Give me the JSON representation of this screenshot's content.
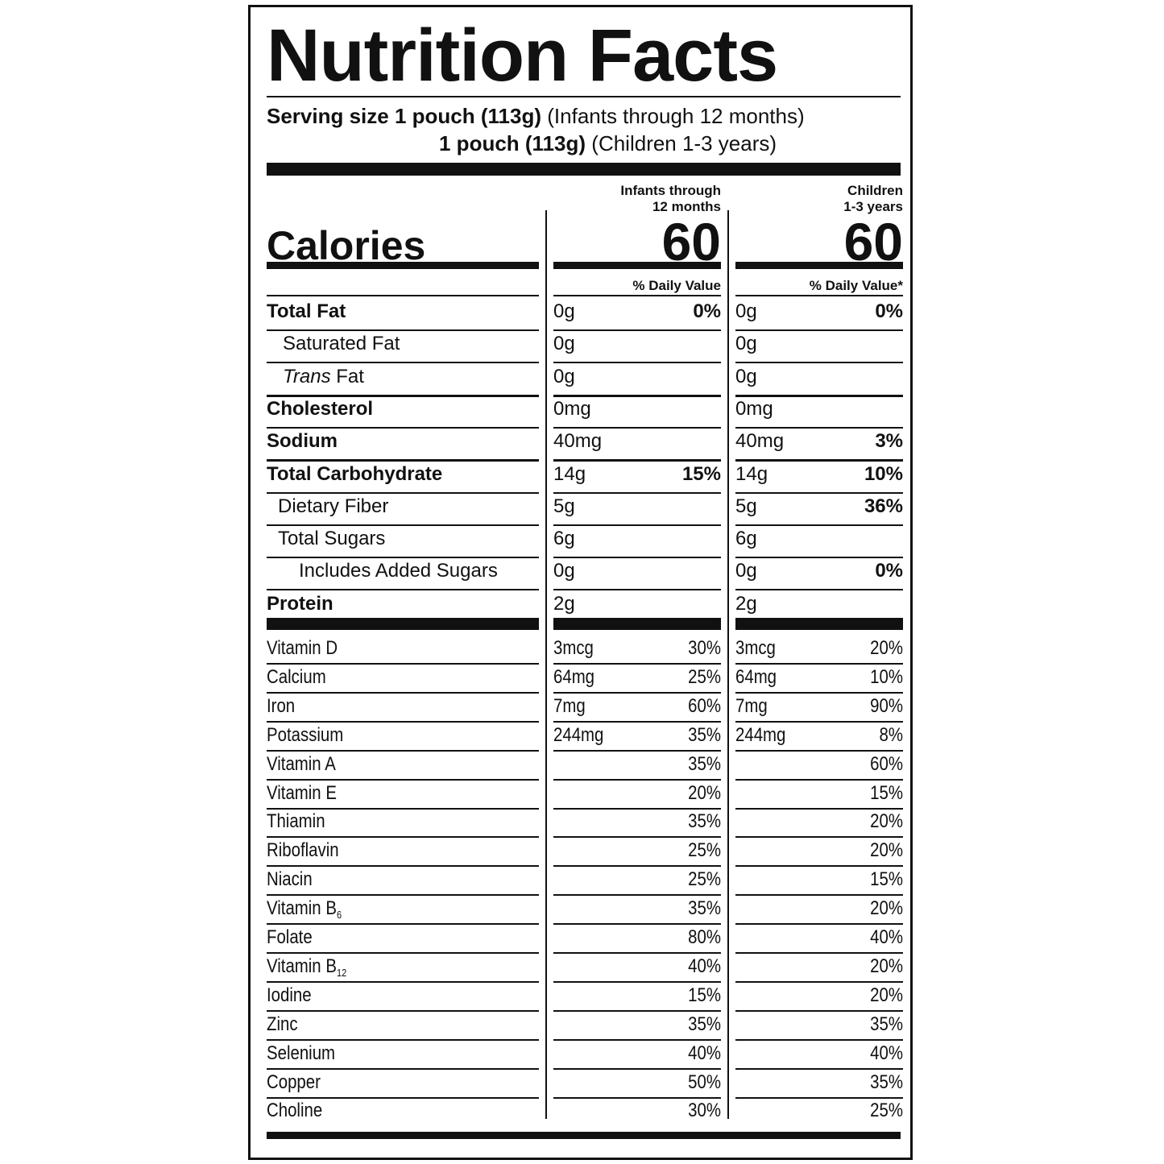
{
  "title": "Nutrition Facts",
  "serving": {
    "label": "Serving size",
    "size1": "1 pouch (113g)",
    "note1": "(Infants through 12 months)",
    "size2": "1 pouch (113g)",
    "note2": "(Children 1-3 years)"
  },
  "columns": {
    "infants": {
      "head1": "Infants through",
      "head2": "12 months",
      "calories": "60",
      "dv_head": "% Daily Value"
    },
    "children": {
      "head1": "Children",
      "head2": "1-3 years",
      "calories": "60",
      "dv_head": "% Daily Value*"
    }
  },
  "calories_label": "Calories",
  "nutrients": [
    {
      "label": "Total Fat",
      "label_pre": "",
      "bold": true,
      "indent": 0,
      "inf_amt": "0g",
      "inf_pct": "0%",
      "ch_amt": "0g",
      "ch_pct": "0%"
    },
    {
      "label": "Saturated Fat",
      "label_pre": "",
      "bold": false,
      "indent": 1,
      "inf_amt": "0g",
      "inf_pct": "",
      "ch_amt": "0g",
      "ch_pct": ""
    },
    {
      "label": " Fat",
      "label_pre": "Trans",
      "bold": false,
      "indent": 1,
      "inf_amt": "0g",
      "inf_pct": "",
      "ch_amt": "0g",
      "ch_pct": ""
    },
    {
      "label": "Cholesterol",
      "label_pre": "",
      "bold": true,
      "indent": 0,
      "inf_amt": "0mg",
      "inf_pct": "",
      "ch_amt": "0mg",
      "ch_pct": ""
    },
    {
      "label": "Sodium",
      "label_pre": "",
      "bold": true,
      "indent": 0,
      "inf_amt": "40mg",
      "inf_pct": "",
      "ch_amt": "40mg",
      "ch_pct": "3%"
    },
    {
      "label": "Total Carbohydrate",
      "label_pre": "",
      "bold": true,
      "indent": 0,
      "inf_amt": "14g",
      "inf_pct": "15%",
      "ch_amt": "14g",
      "ch_pct": "10%"
    },
    {
      "label": "Dietary Fiber",
      "label_pre": "",
      "bold": false,
      "indent": 1,
      "inf_amt": "5g",
      "inf_pct": "",
      "ch_amt": "5g",
      "ch_pct": "36%"
    },
    {
      "label": "Total Sugars",
      "label_pre": "",
      "bold": false,
      "indent": 1,
      "inf_amt": "6g",
      "inf_pct": "",
      "ch_amt": "6g",
      "ch_pct": ""
    },
    {
      "label": "Includes Added Sugars",
      "label_pre": "",
      "bold": false,
      "indent": 2,
      "inf_amt": "0g",
      "inf_pct": "",
      "ch_amt": "0g",
      "ch_pct": "0%"
    },
    {
      "label": "Protein",
      "label_pre": "",
      "bold": true,
      "indent": 0,
      "inf_amt": "2g",
      "inf_pct": "",
      "ch_amt": "2g",
      "ch_pct": ""
    }
  ],
  "vitamins": [
    {
      "label": "Vitamin D",
      "sub": "",
      "inf_amt": "3mcg",
      "inf_pct": "30%",
      "ch_amt": "3mcg",
      "ch_pct": "20%"
    },
    {
      "label": "Calcium",
      "sub": "",
      "inf_amt": "64mg",
      "inf_pct": "25%",
      "ch_amt": "64mg",
      "ch_pct": "10%"
    },
    {
      "label": "Iron",
      "sub": "",
      "inf_amt": "7mg",
      "inf_pct": "60%",
      "ch_amt": "7mg",
      "ch_pct": "90%"
    },
    {
      "label": "Potassium",
      "sub": "",
      "inf_amt": "244mg",
      "inf_pct": "35%",
      "ch_amt": "244mg",
      "ch_pct": "8%"
    },
    {
      "label": "Vitamin A",
      "sub": "",
      "inf_amt": "",
      "inf_pct": "35%",
      "ch_amt": "",
      "ch_pct": "60%"
    },
    {
      "label": "Vitamin E",
      "sub": "",
      "inf_amt": "",
      "inf_pct": "20%",
      "ch_amt": "",
      "ch_pct": "15%"
    },
    {
      "label": "Thiamin",
      "sub": "",
      "inf_amt": "",
      "inf_pct": "35%",
      "ch_amt": "",
      "ch_pct": "20%"
    },
    {
      "label": "Riboflavin",
      "sub": "",
      "inf_amt": "",
      "inf_pct": "25%",
      "ch_amt": "",
      "ch_pct": "20%"
    },
    {
      "label": "Niacin",
      "sub": "",
      "inf_amt": "",
      "inf_pct": "25%",
      "ch_amt": "",
      "ch_pct": "15%"
    },
    {
      "label": "Vitamin B",
      "sub": "6",
      "inf_amt": "",
      "inf_pct": "35%",
      "ch_amt": "",
      "ch_pct": "20%"
    },
    {
      "label": "Folate",
      "sub": "",
      "inf_amt": "",
      "inf_pct": "80%",
      "ch_amt": "",
      "ch_pct": "40%"
    },
    {
      "label": "Vitamin B",
      "sub": "12",
      "inf_amt": "",
      "inf_pct": "40%",
      "ch_amt": "",
      "ch_pct": "20%"
    },
    {
      "label": "Iodine",
      "sub": "",
      "inf_amt": "",
      "inf_pct": "15%",
      "ch_amt": "",
      "ch_pct": "20%"
    },
    {
      "label": "Zinc",
      "sub": "",
      "inf_amt": "",
      "inf_pct": "35%",
      "ch_amt": "",
      "ch_pct": "35%"
    },
    {
      "label": "Selenium",
      "sub": "",
      "inf_amt": "",
      "inf_pct": "40%",
      "ch_amt": "",
      "ch_pct": "40%"
    },
    {
      "label": "Copper",
      "sub": "",
      "inf_amt": "",
      "inf_pct": "50%",
      "ch_amt": "",
      "ch_pct": "35%"
    },
    {
      "label": "Choline",
      "sub": "",
      "inf_amt": "",
      "inf_pct": "30%",
      "ch_amt": "",
      "ch_pct": "25%"
    }
  ]
}
